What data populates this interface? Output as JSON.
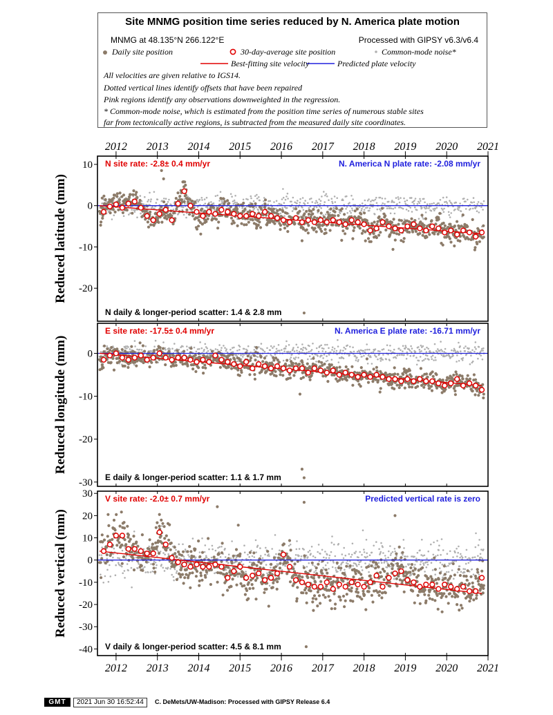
{
  "header": {
    "title": "Site MNMG position time series reduced by N. America plate motion",
    "site_coords": "MNMG at 48.135°N 266.122°E",
    "processing": "Processed with GIPSY v6.3/v6.4",
    "legend": {
      "daily": "Daily site position",
      "avg30": "30-day-average site position",
      "cmn": "Common-mode noise*",
      "best_fit": "Best-fitting site velocity",
      "plate": "Predicted plate velocity"
    },
    "notes": [
      "All velocities are given relative to IGS14.",
      "Dotted vertical lines identify offsets that have been repaired",
      "Pink regions identify any observations downweighted in the regression.",
      "* Common-mode noise, which is estimated from the position time series of numerous stable sites",
      "far from tectonically active regions, is subtracted from the measured daily site coordinates."
    ]
  },
  "colors": {
    "daily": "#8c7b69",
    "cmn": "#b0b0b0",
    "avg_stroke": "#e00000",
    "best_fit": "#e00000",
    "plate": "#2020dd",
    "label_red": "#e00000",
    "label_blue": "#2020dd"
  },
  "footer": {
    "badge": "GMT",
    "timestamp": "2021 Jun 30 16:52:44",
    "credit": "C. DeMets/UW-Madison: Processed with GIPSY Release 6.4"
  },
  "chart_data": [
    {
      "type": "scatter",
      "component": "N",
      "ylabel": "Reduced latitude (mm)",
      "xlim": [
        2011.55,
        2021.0
      ],
      "ylim": [
        -28,
        12
      ],
      "yticks": [
        10,
        0,
        -10,
        -20
      ],
      "xticks": [
        2012,
        2013,
        2014,
        2015,
        2016,
        2017,
        2018,
        2019,
        2020,
        2021
      ],
      "site_rate_label": "N site rate:  -2.8± 0.4 mm/yr",
      "plate_rate_label": "N. America N plate rate: -2.08 mm/yr",
      "scatter_label": "N daily & longer-period scatter:   1.4 &   2.8 mm",
      "site_rate": -2.8,
      "plate_rate": -2.08,
      "fit_line": [
        [
          2011.6,
          0.0
        ],
        [
          2020.85,
          -6.8
        ]
      ],
      "plate_line": [
        [
          2011.55,
          0.0
        ],
        [
          2021.0,
          0.0
        ]
      ],
      "daily_scatter_mm": 1.4,
      "cmn_level": 0.0,
      "outliers": [
        [
          2016.55,
          -26.0
        ],
        [
          2013.1,
          8.5
        ],
        [
          2013.15,
          6.5
        ],
        [
          2016.5,
          -8.5
        ]
      ],
      "avg": [
        [
          2011.7,
          -1.5
        ],
        [
          2011.85,
          -0.2
        ],
        [
          2012.0,
          0.3
        ],
        [
          2012.15,
          -0.5
        ],
        [
          2012.3,
          0.5
        ],
        [
          2012.45,
          1.0
        ],
        [
          2012.6,
          -0.5
        ],
        [
          2012.75,
          -2.5
        ],
        [
          2012.9,
          -3.5
        ],
        [
          2013.05,
          -2.0
        ],
        [
          2013.2,
          -1.0
        ],
        [
          2013.35,
          -3.5
        ],
        [
          2013.5,
          0.5
        ],
        [
          2013.65,
          3.5
        ],
        [
          2013.8,
          0.0
        ],
        [
          2013.95,
          -1.5
        ],
        [
          2014.1,
          -2.5
        ],
        [
          2014.25,
          -1.5
        ],
        [
          2014.4,
          -2.0
        ],
        [
          2014.55,
          -1.0
        ],
        [
          2014.7,
          -1.5
        ],
        [
          2014.85,
          -2.0
        ],
        [
          2015.0,
          -2.5
        ],
        [
          2015.15,
          -2.5
        ],
        [
          2015.3,
          -2.0
        ],
        [
          2015.45,
          -2.5
        ],
        [
          2015.6,
          -1.5
        ],
        [
          2015.75,
          -2.5
        ],
        [
          2015.9,
          -3.0
        ],
        [
          2016.05,
          -3.5
        ],
        [
          2016.2,
          -4.0
        ],
        [
          2016.35,
          -3.0
        ],
        [
          2016.5,
          -4.0
        ],
        [
          2016.65,
          -3.5
        ],
        [
          2016.8,
          -4.0
        ],
        [
          2016.95,
          -3.5
        ],
        [
          2017.1,
          -4.0
        ],
        [
          2017.25,
          -3.5
        ],
        [
          2017.4,
          -4.0
        ],
        [
          2017.55,
          -4.5
        ],
        [
          2017.7,
          -3.5
        ],
        [
          2017.85,
          -4.0
        ],
        [
          2018.0,
          -4.5
        ],
        [
          2018.15,
          -6.0
        ],
        [
          2018.3,
          -5.5
        ],
        [
          2018.45,
          -4.0
        ],
        [
          2018.6,
          -5.0
        ],
        [
          2018.75,
          -5.5
        ],
        [
          2018.9,
          -6.0
        ],
        [
          2019.05,
          -5.0
        ],
        [
          2019.2,
          -4.5
        ],
        [
          2019.35,
          -5.5
        ],
        [
          2019.5,
          -6.0
        ],
        [
          2019.65,
          -5.0
        ],
        [
          2019.8,
          -5.5
        ],
        [
          2019.95,
          -6.5
        ],
        [
          2020.1,
          -6.0
        ],
        [
          2020.25,
          -7.0
        ],
        [
          2020.4,
          -6.0
        ],
        [
          2020.55,
          -6.5
        ],
        [
          2020.7,
          -7.5
        ],
        [
          2020.85,
          -6.5
        ]
      ]
    },
    {
      "type": "scatter",
      "component": "E",
      "ylabel": "Reduced longitude (mm)",
      "xlim": [
        2011.55,
        2021.0
      ],
      "ylim": [
        -31,
        7
      ],
      "yticks": [
        0,
        -10,
        -20,
        -30
      ],
      "xticks": [
        2012,
        2013,
        2014,
        2015,
        2016,
        2017,
        2018,
        2019,
        2020,
        2021
      ],
      "site_rate_label": "E site rate: -17.5± 0.4 mm/yr",
      "plate_rate_label": "N. America E plate rate: -16.71 mm/yr",
      "scatter_label": "E daily & longer-period scatter:   1.1 &   1.7 mm",
      "site_rate": -17.5,
      "plate_rate": -16.71,
      "fit_line": [
        [
          2011.6,
          0.0
        ],
        [
          2020.85,
          -7.5
        ]
      ],
      "plate_line": [
        [
          2011.55,
          0.0
        ],
        [
          2021.0,
          0.0
        ]
      ],
      "daily_scatter_mm": 1.1,
      "cmn_level": 0.0,
      "outliers": [
        [
          2016.5,
          -27.0
        ],
        [
          2016.55,
          -29.0
        ],
        [
          2016.45,
          -9.5
        ]
      ],
      "avg": [
        [
          2011.7,
          -1.5
        ],
        [
          2011.85,
          -0.5
        ],
        [
          2012.0,
          0.0
        ],
        [
          2012.15,
          -1.0
        ],
        [
          2012.3,
          -1.5
        ],
        [
          2012.45,
          -1.0
        ],
        [
          2012.6,
          -0.5
        ],
        [
          2012.75,
          -1.5
        ],
        [
          2012.9,
          -1.0
        ],
        [
          2013.05,
          0.0
        ],
        [
          2013.2,
          -1.0
        ],
        [
          2013.35,
          -1.5
        ],
        [
          2013.5,
          -1.0
        ],
        [
          2013.65,
          -1.0
        ],
        [
          2013.8,
          -1.5
        ],
        [
          2013.95,
          -2.0
        ],
        [
          2014.1,
          -1.5
        ],
        [
          2014.25,
          -2.0
        ],
        [
          2014.4,
          -0.5
        ],
        [
          2014.55,
          -1.5
        ],
        [
          2014.7,
          -2.0
        ],
        [
          2014.85,
          -2.5
        ],
        [
          2015.0,
          -3.0
        ],
        [
          2015.15,
          -2.0
        ],
        [
          2015.3,
          -3.5
        ],
        [
          2015.45,
          -2.5
        ],
        [
          2015.6,
          -3.0
        ],
        [
          2015.75,
          -3.5
        ],
        [
          2015.9,
          -3.0
        ],
        [
          2016.05,
          -3.5
        ],
        [
          2016.2,
          -4.0
        ],
        [
          2016.35,
          -3.5
        ],
        [
          2016.5,
          -3.5
        ],
        [
          2016.65,
          -4.5
        ],
        [
          2016.8,
          -3.5
        ],
        [
          2016.95,
          -4.0
        ],
        [
          2017.1,
          -4.5
        ],
        [
          2017.25,
          -4.0
        ],
        [
          2017.4,
          -5.0
        ],
        [
          2017.55,
          -4.5
        ],
        [
          2017.7,
          -5.0
        ],
        [
          2017.85,
          -5.5
        ],
        [
          2018.0,
          -5.0
        ],
        [
          2018.15,
          -5.5
        ],
        [
          2018.3,
          -5.0
        ],
        [
          2018.45,
          -5.5
        ],
        [
          2018.6,
          -6.0
        ],
        [
          2018.75,
          -6.0
        ],
        [
          2018.9,
          -6.5
        ],
        [
          2019.05,
          -6.0
        ],
        [
          2019.2,
          -6.5
        ],
        [
          2019.35,
          -6.0
        ],
        [
          2019.5,
          -6.5
        ],
        [
          2019.65,
          -6.5
        ],
        [
          2019.8,
          -7.0
        ],
        [
          2019.95,
          -7.5
        ],
        [
          2020.1,
          -7.0
        ],
        [
          2020.25,
          -6.0
        ],
        [
          2020.4,
          -7.5
        ],
        [
          2020.55,
          -7.0
        ],
        [
          2020.7,
          -7.5
        ],
        [
          2020.85,
          -8.5
        ]
      ]
    },
    {
      "type": "scatter",
      "component": "V",
      "ylabel": "Reduced vertical (mm)",
      "xlim": [
        2011.55,
        2021.0
      ],
      "ylim": [
        -43,
        31
      ],
      "yticks": [
        30,
        20,
        10,
        0,
        -10,
        -20,
        -30,
        -40
      ],
      "xticks": [
        2012,
        2013,
        2014,
        2015,
        2016,
        2017,
        2018,
        2019,
        2020,
        2021
      ],
      "site_rate_label": "V site rate:  -2.0± 0.7 mm/yr",
      "plate_rate_label": "Predicted vertical rate is zero",
      "scatter_label": "V daily & longer-period scatter:   4.5 &   8.1 mm",
      "site_rate": -2.0,
      "plate_rate": 0.0,
      "fit_line": [
        [
          2011.6,
          4.0
        ],
        [
          2020.85,
          -15.0
        ]
      ],
      "plate_line": [
        [
          2011.55,
          0.0
        ],
        [
          2021.0,
          0.0
        ]
      ],
      "daily_scatter_mm": 4.5,
      "cmn_level": 0.0,
      "outliers": [
        [
          2016.55,
          26.0
        ],
        [
          2016.6,
          -39.0
        ],
        [
          2014.45,
          24.0
        ],
        [
          2018.75,
          20.0
        ],
        [
          2013.05,
          20.5
        ]
      ],
      "avg": [
        [
          2011.7,
          4.0
        ],
        [
          2011.85,
          7.0
        ],
        [
          2012.0,
          11.0
        ],
        [
          2012.15,
          11.0
        ],
        [
          2012.3,
          5.0
        ],
        [
          2012.45,
          5.0
        ],
        [
          2012.6,
          4.0
        ],
        [
          2012.75,
          3.0
        ],
        [
          2012.9,
          3.0
        ],
        [
          2013.05,
          12.5
        ],
        [
          2013.2,
          7.0
        ],
        [
          2013.35,
          1.0
        ],
        [
          2013.5,
          -1.0
        ],
        [
          2013.65,
          -2.0
        ],
        [
          2013.8,
          -3.0
        ],
        [
          2013.95,
          -2.0
        ],
        [
          2014.1,
          -3.0
        ],
        [
          2014.25,
          -3.0
        ],
        [
          2014.4,
          -2.0
        ],
        [
          2014.55,
          -3.0
        ],
        [
          2014.7,
          -8.0
        ],
        [
          2014.85,
          -5.0
        ],
        [
          2015.0,
          -3.0
        ],
        [
          2015.15,
          -8.0
        ],
        [
          2015.3,
          -7.0
        ],
        [
          2015.45,
          -6.0
        ],
        [
          2015.6,
          -9.0
        ],
        [
          2015.75,
          -8.0
        ],
        [
          2015.9,
          -6.0
        ],
        [
          2016.05,
          2.5
        ],
        [
          2016.2,
          -3.0
        ],
        [
          2016.35,
          -9.0
        ],
        [
          2016.5,
          -10.0
        ],
        [
          2016.65,
          -11.0
        ],
        [
          2016.8,
          -12.0
        ],
        [
          2016.95,
          -12.0
        ],
        [
          2017.1,
          -10.0
        ],
        [
          2017.25,
          -13.0
        ],
        [
          2017.4,
          -11.0
        ],
        [
          2017.55,
          -12.0
        ],
        [
          2017.7,
          -10.0
        ],
        [
          2017.85,
          -11.0
        ],
        [
          2018.0,
          -12.0
        ],
        [
          2018.15,
          -10.0
        ],
        [
          2018.3,
          -7.0
        ],
        [
          2018.45,
          -12.0
        ],
        [
          2018.6,
          -8.0
        ],
        [
          2018.75,
          -6.0
        ],
        [
          2018.9,
          -5.0
        ],
        [
          2019.05,
          -9.0
        ],
        [
          2019.2,
          -10.0
        ],
        [
          2019.35,
          -12.0
        ],
        [
          2019.5,
          -11.0
        ],
        [
          2019.65,
          -11.0
        ],
        [
          2019.8,
          -13.0
        ],
        [
          2019.95,
          -11.0
        ],
        [
          2020.1,
          -12.0
        ],
        [
          2020.25,
          -13.0
        ],
        [
          2020.4,
          -12.0
        ],
        [
          2020.55,
          -14.0
        ],
        [
          2020.7,
          -14.0
        ],
        [
          2020.85,
          -8.0
        ]
      ]
    }
  ]
}
